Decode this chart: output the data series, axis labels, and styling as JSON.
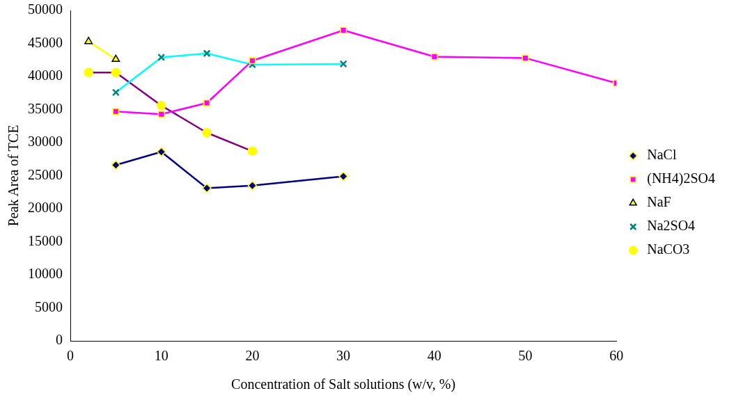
{
  "chart_data": {
    "type": "line",
    "xlabel": "Concentration of Salt solutions (w/v, %)",
    "ylabel": "Peak Area of TCE",
    "xlim": [
      0,
      60
    ],
    "xticks": [
      0,
      10,
      20,
      30,
      40,
      50,
      60
    ],
    "ylim": [
      0,
      50000
    ],
    "yticks": [
      0,
      5000,
      10000,
      15000,
      20000,
      25000,
      30000,
      35000,
      40000,
      45000,
      50000
    ],
    "grid": false,
    "legend": "right",
    "series": [
      {
        "name": "NaCl",
        "color": "#000080",
        "marker": "diamond",
        "x": [
          5,
          10,
          15,
          20,
          30
        ],
        "values": [
          26600,
          28600,
          23100,
          23500,
          24900
        ]
      },
      {
        "name": "(NH4)2SO4",
        "color": "#ff00ff",
        "marker": "square",
        "x": [
          5,
          10,
          15,
          20,
          30,
          40,
          50,
          60
        ],
        "values": [
          34700,
          34300,
          36000,
          42400,
          47000,
          43000,
          42800,
          39000
        ]
      },
      {
        "name": "NaF",
        "color": "#ffff00",
        "marker": "triangle",
        "x": [
          2,
          5
        ],
        "values": [
          45300,
          42600
        ]
      },
      {
        "name": "Na2SO4",
        "color": "#00ffff",
        "marker": "cross",
        "x": [
          5,
          10,
          15,
          20,
          30
        ],
        "values": [
          37600,
          42900,
          43500,
          41800,
          41900
        ]
      },
      {
        "name": "NaCO3",
        "color": "#800080",
        "marker": "circle",
        "x": [
          2,
          5,
          10,
          15,
          20
        ],
        "values": [
          40600,
          40600,
          35600,
          31500,
          28700
        ]
      }
    ]
  }
}
